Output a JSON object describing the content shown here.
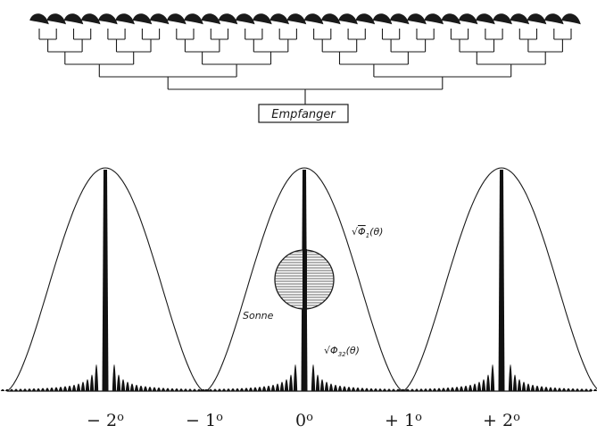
{
  "receiver": {
    "label": "Empfanger"
  },
  "antenna_count": 32,
  "annotations": {
    "sun_label": "Sonne",
    "element_pattern": {
      "root": "√",
      "symbol": "Φ",
      "subscript": "1",
      "argument": "(θ)"
    },
    "array_pattern": {
      "root": "√",
      "symbol": "Φ",
      "subscript": "32",
      "argument": "(θ)"
    }
  },
  "axis": {
    "ticks": [
      {
        "sign": "−",
        "value": "2",
        "unit": "o"
      },
      {
        "sign": "−",
        "value": "1",
        "unit": "o"
      },
      {
        "sign": "",
        "value": "0",
        "unit": "o"
      },
      {
        "sign": "+",
        "value": "1",
        "unit": "o"
      },
      {
        "sign": "+",
        "value": "2",
        "unit": "o"
      }
    ]
  },
  "colors": {
    "ink": "#1a1a1a",
    "paper": "#ffffff"
  }
}
